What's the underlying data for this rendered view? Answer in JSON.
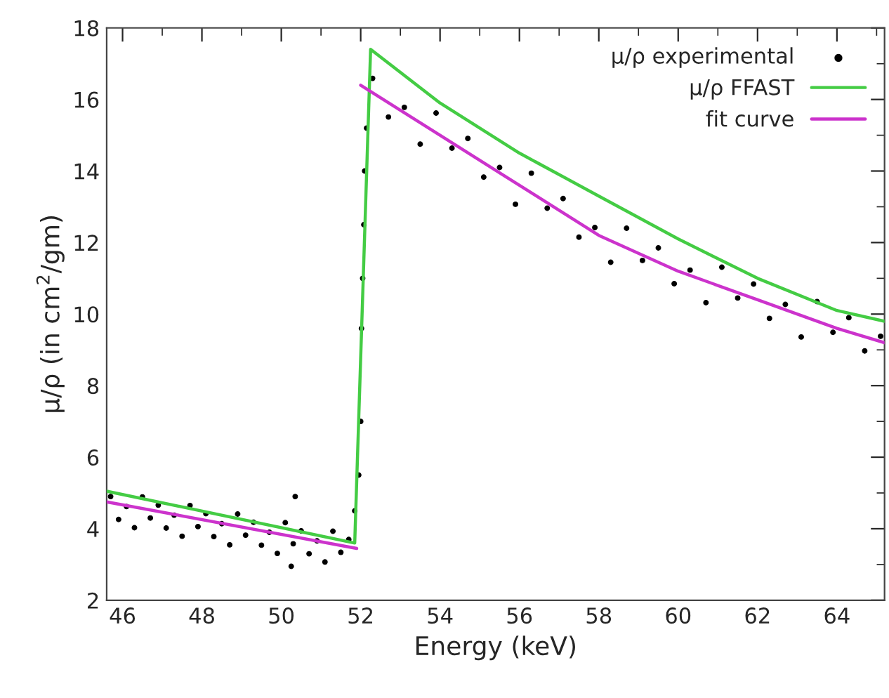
{
  "chart_data": {
    "type": "line",
    "xlabel": "Energy (keV)",
    "ylabel": "μ/ρ (in cm$^{2}$/gm)",
    "xlim": [
      45.6,
      65.2
    ],
    "ylim": [
      2,
      18
    ],
    "xticks": [
      46,
      48,
      50,
      52,
      54,
      56,
      58,
      60,
      62,
      64
    ],
    "yticks": [
      2,
      4,
      6,
      8,
      10,
      12,
      14,
      16,
      18
    ],
    "grid": false,
    "legend": "top right",
    "series": [
      {
        "name": "μ/ρ experimental",
        "type": "scatter",
        "color": "#000000",
        "marker": "circle",
        "x": [
          45.7,
          45.9,
          46.1,
          46.3,
          46.5,
          46.7,
          46.9,
          47.1,
          47.3,
          47.5,
          47.7,
          47.9,
          48.1,
          48.3,
          48.5,
          48.7,
          48.9,
          49.1,
          49.3,
          49.5,
          49.7,
          49.9,
          50.1,
          50.25,
          50.3,
          50.35,
          50.5,
          50.7,
          50.9,
          51.1,
          51.3,
          51.5,
          51.7,
          51.85,
          51.95,
          52.0,
          52.02,
          52.05,
          52.08,
          52.1,
          52.15,
          52.3,
          52.7,
          53.1,
          53.5,
          53.9,
          54.3,
          54.7,
          55.1,
          55.5,
          55.9,
          56.3,
          56.7,
          57.1,
          57.5,
          57.9,
          58.3,
          58.7,
          59.1,
          59.5,
          59.9,
          60.3,
          60.7,
          61.1,
          61.5,
          61.9,
          62.3,
          62.7,
          63.1,
          63.5,
          63.9,
          64.3,
          64.7,
          65.1
        ],
        "values": [
          4.9,
          4.26,
          4.62,
          4.03,
          4.89,
          4.3,
          4.66,
          4.02,
          4.38,
          3.79,
          4.65,
          4.06,
          4.42,
          3.78,
          4.14,
          3.55,
          4.41,
          3.82,
          4.18,
          3.54,
          3.9,
          3.31,
          4.17,
          2.95,
          3.58,
          4.9,
          3.94,
          3.3,
          3.66,
          3.07,
          3.93,
          3.34,
          3.7,
          4.5,
          5.5,
          7.0,
          9.6,
          11.0,
          12.5,
          14.0,
          15.2,
          16.59,
          15.51,
          15.78,
          14.75,
          15.62,
          14.64,
          14.91,
          13.83,
          14.1,
          13.07,
          13.94,
          12.96,
          13.23,
          12.15,
          12.42,
          11.45,
          12.4,
          11.5,
          11.85,
          10.85,
          11.23,
          10.32,
          11.31,
          10.45,
          10.84,
          9.88,
          10.27,
          9.36,
          10.35,
          9.49,
          9.9,
          8.97,
          9.38
        ]
      },
      {
        "name": "μ/ρ FFAST",
        "color": "#44cc44",
        "x": [
          45.6,
          51.85,
          52.25,
          54,
          56,
          58,
          60,
          62,
          64,
          65.2
        ],
        "values": [
          5.05,
          3.6,
          17.4,
          15.9,
          14.5,
          13.3,
          12.1,
          11.0,
          10.1,
          9.8
        ]
      },
      {
        "name": "fit curve",
        "color": "#cc33cc",
        "x": [
          45.6,
          51.9,
          51.95,
          52,
          54,
          56,
          58,
          60,
          62,
          64,
          65.2
        ],
        "values": [
          4.75,
          3.45,
          null,
          16.4,
          15.0,
          13.6,
          12.2,
          11.2,
          10.4,
          9.6,
          9.2
        ]
      }
    ]
  }
}
